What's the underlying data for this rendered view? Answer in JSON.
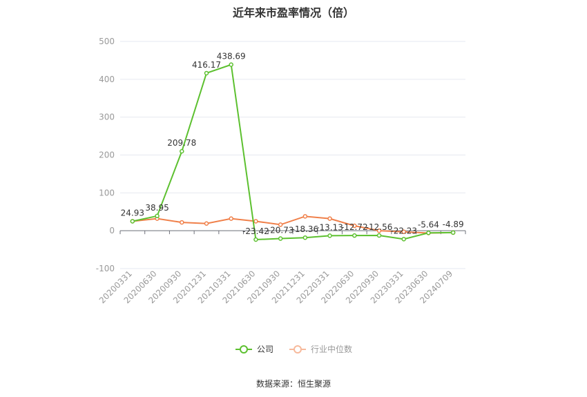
{
  "chart_data": {
    "type": "line",
    "title": "近年来市盈率情况（倍）",
    "categories": [
      "20200331",
      "20200630",
      "20200930",
      "20201231",
      "20210331",
      "20210630",
      "20210930",
      "20211231",
      "20220331",
      "20220630",
      "20220930",
      "20230331",
      "20230630",
      "20240709"
    ],
    "series": [
      {
        "name": "公司",
        "color": "#5cc02f",
        "values": [
          24.93,
          38.95,
          209.78,
          416.17,
          438.69,
          -23.42,
          -20.73,
          -18.36,
          -13.13,
          -12.72,
          -12.56,
          -22.23,
          -5.64,
          -4.89
        ],
        "labels": [
          "24.93",
          "38.95",
          "209.78",
          "416.17",
          "438.69",
          "-23.42",
          "-20.73",
          "-18.36",
          "-13.13",
          "-12.72",
          "-12.56",
          "-22.23",
          "-5.64",
          "-4.89"
        ]
      },
      {
        "name": "行业中位数",
        "color": "#f0804a",
        "values": [
          25,
          32,
          22,
          19,
          32,
          25,
          16,
          38,
          32,
          13,
          0,
          -3,
          -6,
          -5
        ]
      }
    ],
    "ylim": [
      -100,
      500
    ],
    "yticks": [
      "-100",
      "0",
      "100",
      "200",
      "300",
      "400",
      "500"
    ],
    "grid": true,
    "legend_position": "bottom"
  },
  "source": "数据来源：恒生聚源"
}
